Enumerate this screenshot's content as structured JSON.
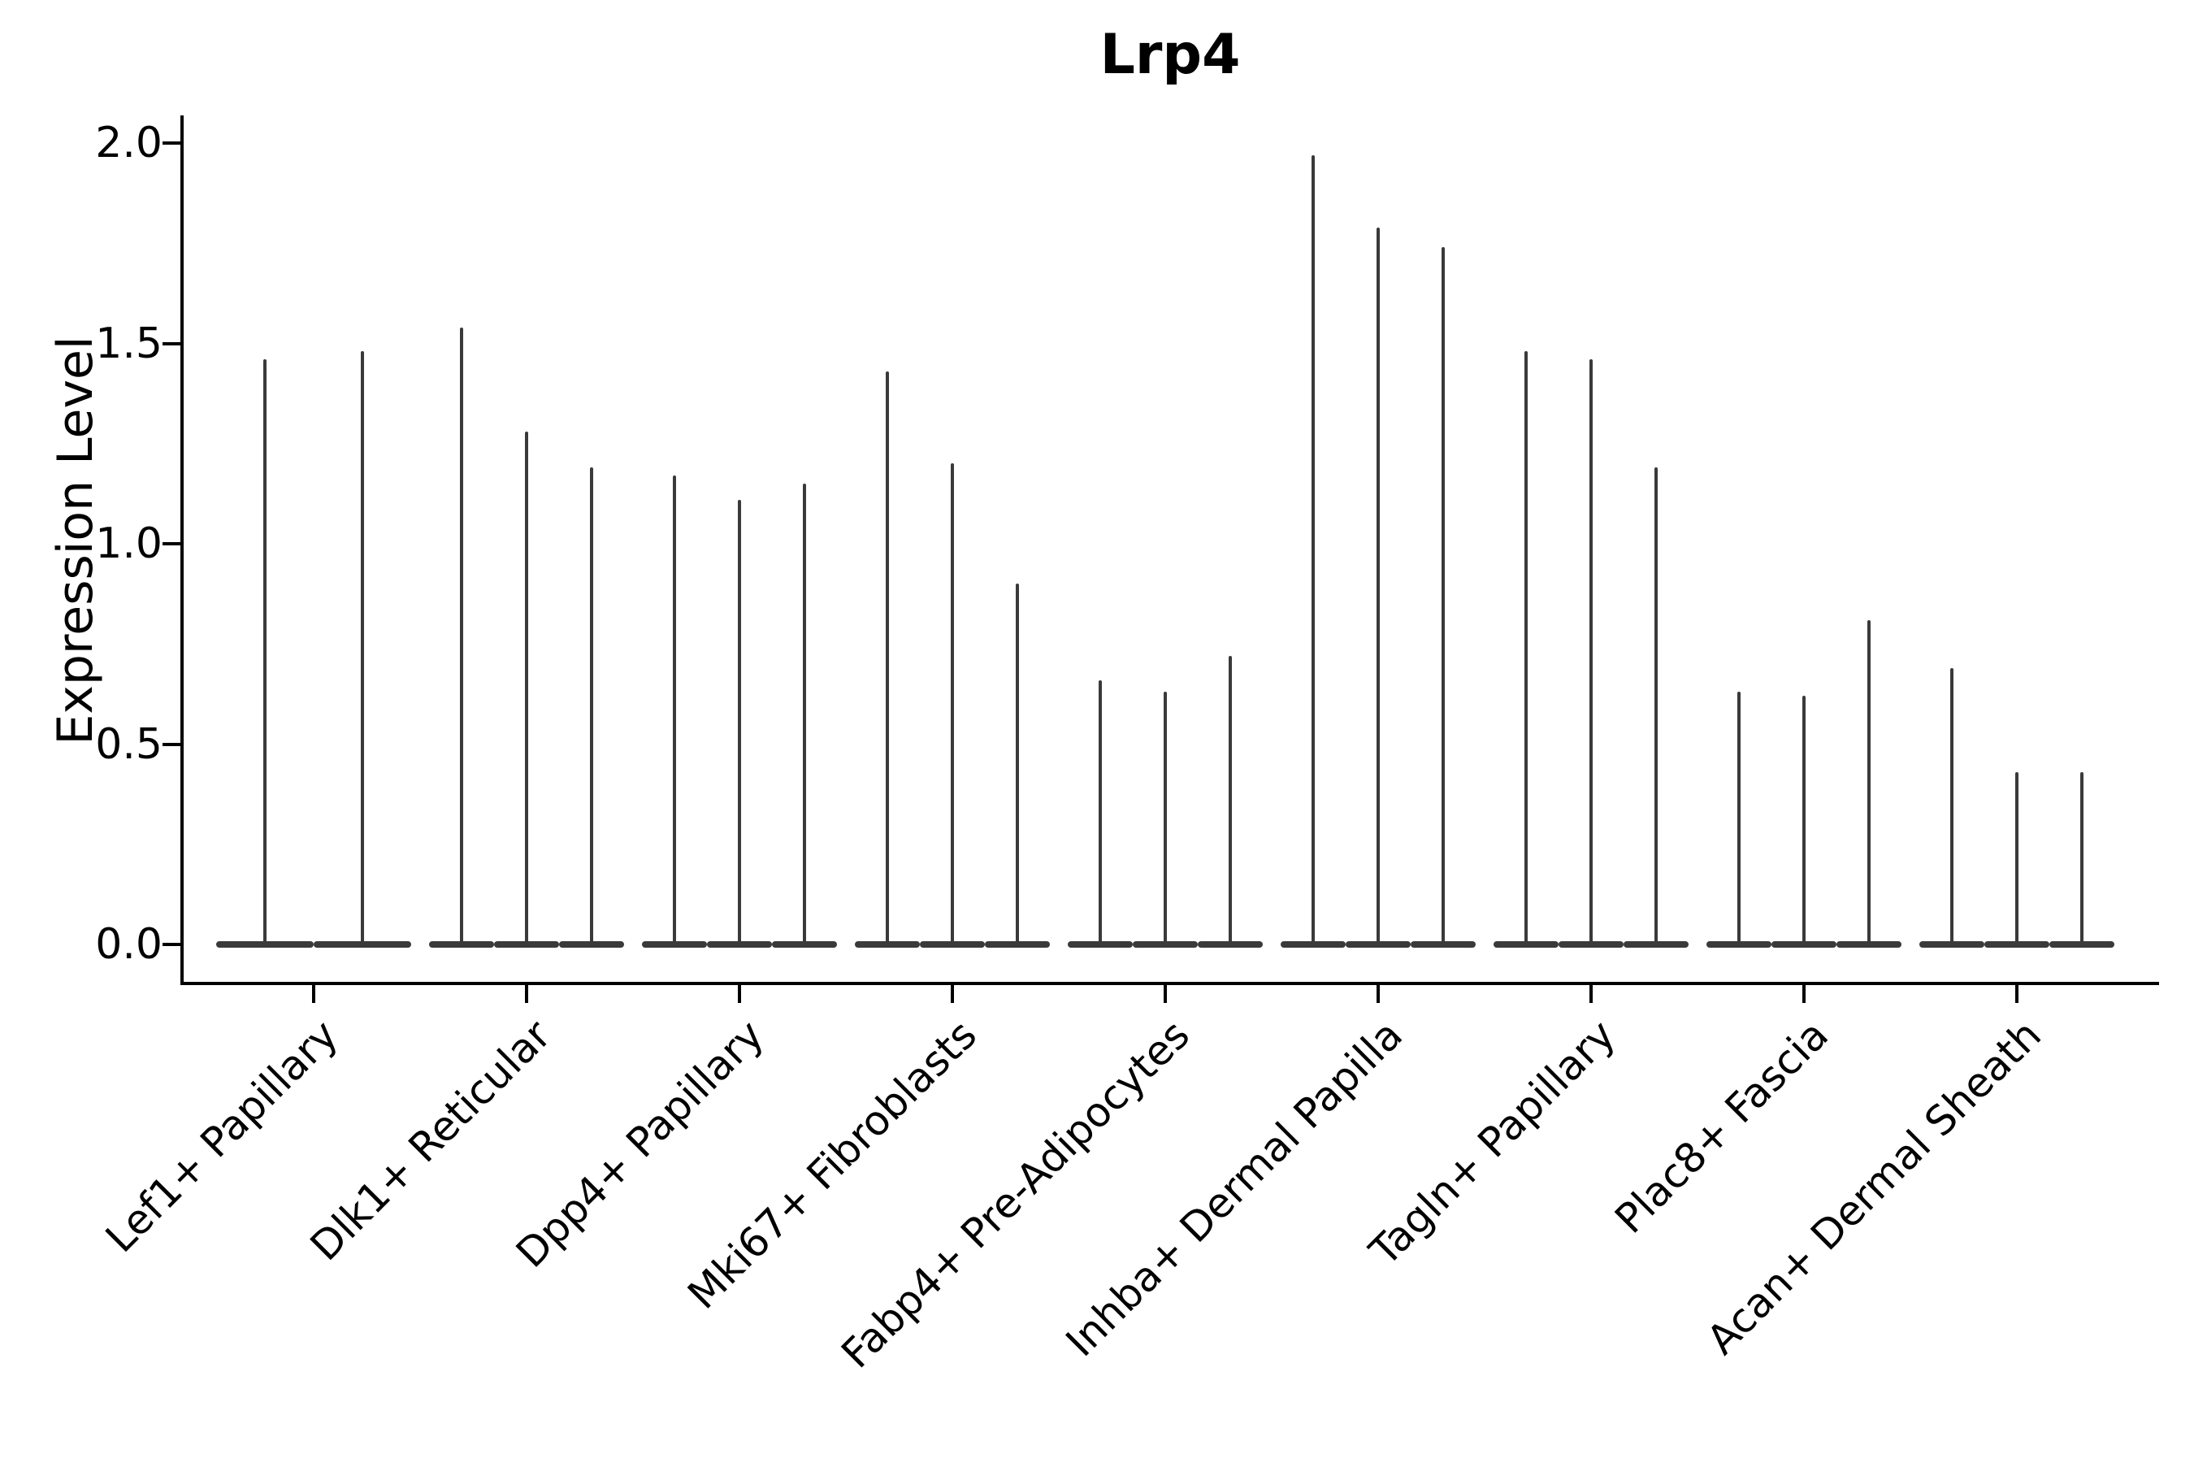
{
  "title": "Lrp4",
  "y_axis": {
    "label": "Expression Level",
    "tick_labels": [
      "0.0",
      "0.5",
      "1.0",
      "1.5",
      "2.0"
    ],
    "tick_values": [
      0.0,
      0.5,
      1.0,
      1.5,
      2.0
    ]
  },
  "chart_data": {
    "type": "violin",
    "title": "Lrp4",
    "xlabel": "",
    "ylabel": "Expression Level",
    "ylim": [
      0.0,
      2.0
    ],
    "grid": false,
    "legend": "none",
    "description": "Thin single-cell expression violins: each cell-type group contains dodged violins whose density mass sits in a wide flat base at expression 0 with a hairline spike rising to the maximum expression value.",
    "categories": [
      "Lef1+ Papillary",
      "Dlk1+ Reticular",
      "Dpp4+ Papillary",
      "Mki67+ Fibroblasts",
      "Fabp4+ Pre-Adipocytes",
      "Inhba+ Dermal Papilla",
      "Tagln+ Papillary",
      "Plac8+ Fascia",
      "Acan+ Dermal Sheath"
    ],
    "groups": [
      {
        "label": "Lef1+ Papillary",
        "violin_max_values": [
          1.46,
          1.48
        ]
      },
      {
        "label": "Dlk1+ Reticular",
        "violin_max_values": [
          1.54,
          1.28,
          1.19
        ]
      },
      {
        "label": "Dpp4+ Papillary",
        "violin_max_values": [
          1.17,
          1.11,
          1.15
        ]
      },
      {
        "label": "Mki67+ Fibroblasts",
        "violin_max_values": [
          1.43,
          1.2,
          0.9
        ]
      },
      {
        "label": "Fabp4+ Pre-Adipocytes",
        "violin_max_values": [
          0.66,
          0.63,
          0.72
        ]
      },
      {
        "label": "Inhba+ Dermal Papilla",
        "violin_max_values": [
          1.97,
          1.79,
          1.74
        ]
      },
      {
        "label": "Tagln+ Papillary",
        "violin_max_values": [
          1.48,
          1.46,
          1.19
        ]
      },
      {
        "label": "Plac8+ Fascia",
        "violin_max_values": [
          0.63,
          0.62,
          0.81
        ]
      },
      {
        "label": "Acan+ Dermal Sheath",
        "violin_max_values": [
          0.69,
          0.43,
          0.43
        ]
      }
    ]
  }
}
